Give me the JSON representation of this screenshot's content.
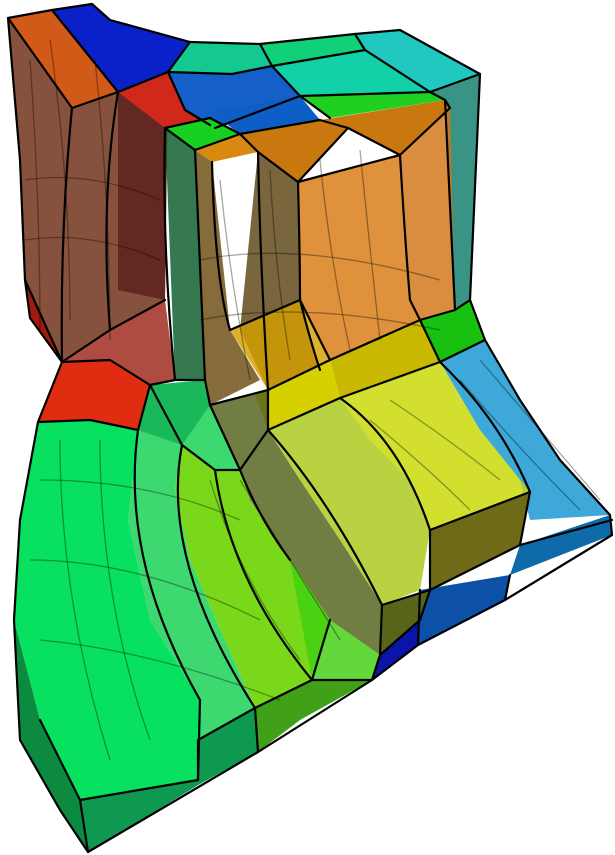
{
  "figure": {
    "description_visible_text": [],
    "colors": {
      "background": "#ffffff",
      "dark_red": "#6b2a12",
      "maroon": "#5a2020",
      "red": "#e03018",
      "orange": "#d86a10",
      "amber": "#d49a18",
      "yellow": "#d6d600",
      "yellow_green": "#a8d800",
      "lime": "#6ad81a",
      "bright_green": "#2ad840",
      "emerald": "#0ae06a",
      "teal": "#12c8a0",
      "cyan": "#20d8c0",
      "sky_blue": "#1aa0e0",
      "blue": "#1050c0",
      "navy": "#0a1fb0",
      "dark_teal": "#0e7c6a",
      "edge": "#000000"
    }
  }
}
